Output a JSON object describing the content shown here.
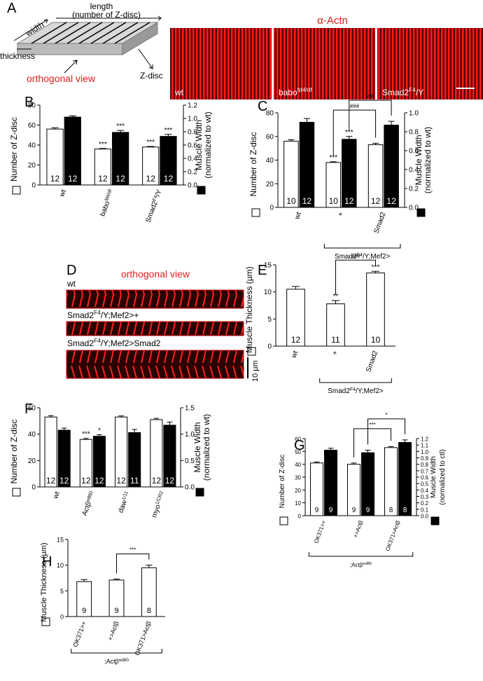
{
  "panel_labels": [
    "A",
    "B",
    "C",
    "D",
    "E",
    "F",
    "G",
    "H"
  ],
  "panel_a": {
    "diagram": {
      "length": "length",
      "length_note": "(number of Z-disc)",
      "width": "width",
      "thickness": "thickness",
      "view": "orthogonal view",
      "z_disc": "Z-disc"
    },
    "stain": "α-Actn",
    "images": [
      [
        "wt"
      ],
      [
        "babo",
        "fd4/df"
      ],
      [
        "Smad2",
        "F4",
        "/Y"
      ]
    ]
  },
  "panel_d": {
    "title": "orthogonal view",
    "rows": [
      [
        "wt"
      ],
      [
        "Smad2",
        "F4",
        "/Y;Mef2>+"
      ],
      [
        "Smad2",
        "F4",
        "/Y;Mef2>Smad2"
      ]
    ],
    "scale": "10 µm"
  },
  "chart_data": [
    {
      "type": "bar",
      "categories": [
        [
          "wt"
        ],
        [
          "babo",
          "fd4/df"
        ],
        [
          "Smad2",
          "F4",
          "/Y"
        ]
      ],
      "ylim": [
        0,
        80
      ],
      "yticks": [
        0,
        20,
        40,
        60,
        80
      ],
      "y2lim": [
        0,
        1.2
      ],
      "y2ticks": [
        {
          "value": 0,
          "label": "0.0"
        },
        0.2,
        0.4,
        0.6,
        0.8,
        {
          "value": 1,
          "label": "1.0"
        },
        1.2
      ],
      "series": [
        {
          "name": [
            "Number of Z-disc"
          ],
          "color": "#ffffff",
          "values": [
            56,
            36,
            38
          ],
          "errors": [
            1.2,
            0.6,
            0.6
          ],
          "n_labels": [
            12,
            12,
            12
          ],
          "sig": [
            null,
            "***",
            "***"
          ]
        },
        {
          "name": [
            "Muscle Width",
            "(normalized to wt)"
          ],
          "color": "#000000",
          "axis": "y2",
          "values": [
            1.02,
            0.79,
            0.73
          ],
          "errors": [
            0.02,
            0.03,
            0.03
          ],
          "n_labels": [
            12,
            12,
            12
          ],
          "sig": [
            null,
            "***",
            "***"
          ]
        }
      ]
    },
    {
      "type": "bar",
      "categories": [
        [
          "wt"
        ],
        [
          "+"
        ],
        [
          "Smad2"
        ]
      ],
      "ylim": [
        0,
        80
      ],
      "yticks": [
        0,
        20,
        40,
        60,
        80
      ],
      "y2lim": [
        0,
        1
      ],
      "y2ticks": [
        {
          "value": 0,
          "label": "0.0"
        },
        0.2,
        0.4,
        0.6,
        0.8,
        {
          "value": 1,
          "label": "1.0"
        }
      ],
      "series": [
        {
          "name": [
            "Number of Z-disc"
          ],
          "color": "#ffffff",
          "values": [
            56,
            38,
            53
          ],
          "errors": [
            1.2,
            0.6,
            1.2
          ],
          "n_labels": [
            10,
            10,
            12
          ],
          "sig": [
            null,
            "***",
            null
          ]
        },
        {
          "name": [
            "Muscle Width",
            "(normalized to wt)"
          ],
          "color": "#000000",
          "axis": "y2",
          "values": [
            0.9,
            0.72,
            0.87
          ],
          "errors": [
            0.04,
            0.03,
            0.04
          ],
          "n_labels": [
            12,
            12,
            12
          ],
          "sig": [
            null,
            "***",
            null
          ]
        }
      ],
      "brackets": [
        {
          "series": 0,
          "from": 1,
          "to": 2,
          "label": "###"
        },
        {
          "series": 1,
          "from": 1,
          "to": 2,
          "label": "##"
        }
      ],
      "group": {
        "label": [
          "Smad2",
          "F4",
          "/Y;Mef2>"
        ],
        "from": 1,
        "to": 2
      }
    },
    {
      "type": "bar",
      "categories": [
        [
          "wt"
        ],
        [
          "+"
        ],
        [
          "Smad2"
        ]
      ],
      "ylim": [
        0,
        15
      ],
      "yticks": [
        0,
        5,
        10,
        15
      ],
      "series": [
        {
          "name": [
            "Muscle Thickness (µm)"
          ],
          "color": "#ffffff",
          "values": [
            10.5,
            7.8,
            13.5
          ],
          "errors": [
            0.5,
            0.6,
            0.3
          ],
          "n_labels": [
            12,
            11,
            10
          ],
          "sig": [
            null,
            "**",
            "***"
          ]
        }
      ],
      "brackets": [
        {
          "series": 0,
          "from": 1,
          "to": 2,
          "label": "###"
        }
      ],
      "group": {
        "label": [
          "Smad2",
          "F4",
          "/Y;Mef2>"
        ],
        "from": 1,
        "to": 2
      }
    },
    {
      "type": "bar",
      "categories": [
        [
          "wt"
        ],
        [
          "Actβ",
          "ed80"
        ],
        [
          "daw",
          "1/11"
        ],
        [
          "myo",
          "1/CR2"
        ]
      ],
      "ylim": [
        0,
        60
      ],
      "yticks": [
        0,
        20,
        40,
        60
      ],
      "y2lim": [
        0,
        1.5
      ],
      "y2ticks": [
        {
          "value": 0,
          "label": "0.0"
        },
        0.5,
        {
          "value": 1,
          "label": "1.0"
        },
        1.5
      ],
      "series": [
        {
          "name": [
            "Number of Z-disc"
          ],
          "color": "#ffffff",
          "values": [
            53,
            36,
            53,
            51
          ],
          "errors": [
            1,
            0.8,
            0.8,
            1
          ],
          "n_labels": [
            12,
            12,
            12,
            12
          ],
          "sig": [
            null,
            "***",
            null,
            null
          ]
        },
        {
          "name": [
            "Muscle Width",
            "(normalized to wt)"
          ],
          "color": "#000000",
          "axis": "y2",
          "values": [
            1.075,
            0.96,
            1.03,
            1.17
          ],
          "errors": [
            0.04,
            0.03,
            0.06,
            0.06
          ],
          "n_labels": [
            12,
            12,
            11,
            12
          ],
          "sig": [
            null,
            "*",
            null,
            null
          ]
        }
      ]
    },
    {
      "type": "bar",
      "categories": [
        [
          "OK371>+"
        ],
        [
          "+>Actβ"
        ],
        [
          "OK371>Actβ"
        ]
      ],
      "ylim": [
        0,
        60
      ],
      "yticks": [
        0,
        10,
        20,
        30,
        40,
        50,
        60
      ],
      "y2lim": [
        0,
        1.2
      ],
      "y2ticks": [
        {
          "value": 0,
          "label": "0.0"
        },
        0.1,
        0.2,
        0.3,
        0.4,
        0.5,
        0.6,
        0.7,
        0.8,
        0.9,
        {
          "value": 1,
          "label": "1.0"
        },
        1.1,
        1.2
      ],
      "series": [
        {
          "name": [
            "Number of Z-disc"
          ],
          "color": "#ffffff",
          "values": [
            41,
            40,
            53
          ],
          "errors": [
            0.8,
            1,
            0.8
          ],
          "n_labels": [
            9,
            9,
            8
          ],
          "sig": [
            null,
            null,
            null
          ]
        },
        {
          "name": [
            "Muscle Width",
            "(normalized to ctl)"
          ],
          "color": "#000000",
          "axis": "y2",
          "values": [
            1.02,
            0.98,
            1.14
          ],
          "errors": [
            0.03,
            0.04,
            0.04
          ],
          "n_labels": [
            9,
            9,
            8
          ],
          "sig": [
            null,
            null,
            null
          ]
        }
      ],
      "brackets": [
        {
          "series": 0,
          "from": 1,
          "to": 2,
          "label": "***"
        },
        {
          "series": 1,
          "from": 1,
          "to": 2,
          "label": "*"
        }
      ],
      "group": {
        "label": [
          ";Actβ",
          "ed80"
        ],
        "from": 0,
        "to": 2
      }
    },
    {
      "type": "bar",
      "categories": [
        [
          "OK371>+"
        ],
        [
          "+>Actβ"
        ],
        [
          "OK371>Actβ"
        ]
      ],
      "ylim": [
        0,
        15
      ],
      "yticks": [
        0,
        5,
        10,
        15
      ],
      "series": [
        {
          "name": [
            "Muscle Thickness (µm)"
          ],
          "color": "#ffffff",
          "values": [
            6.8,
            7.1,
            9.5
          ],
          "errors": [
            0.4,
            0.2,
            0.5
          ],
          "n_labels": [
            9,
            9,
            8
          ],
          "sig": [
            null,
            null,
            null
          ]
        }
      ],
      "brackets": [
        {
          "series": 0,
          "from": 1,
          "to": 2,
          "label": "***"
        }
      ],
      "group": {
        "label": [
          ";Actβ",
          "ed80"
        ],
        "from": 0,
        "to": 2
      }
    }
  ]
}
